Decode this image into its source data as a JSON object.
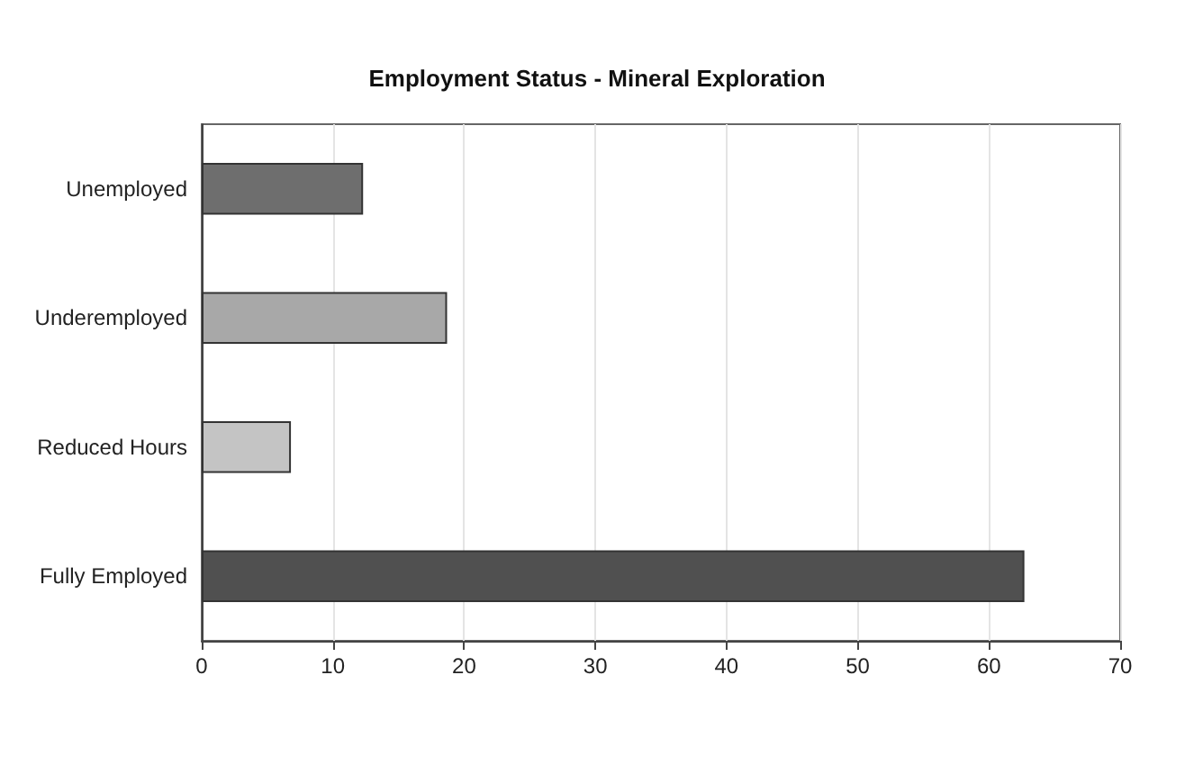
{
  "chart_data": {
    "type": "bar",
    "orientation": "horizontal",
    "title": "Employment Status - Mineral Exploration",
    "categories": [
      "Unemployed",
      "Underemployed",
      "Reduced Hours",
      "Fully Employed"
    ],
    "values": [
      12.3,
      18.7,
      6.8,
      62.7
    ],
    "colors": [
      "#6e6e6e",
      "#a8a8a8",
      "#c4c4c4",
      "#505050"
    ],
    "xlim": [
      0,
      70
    ],
    "xticks": [
      0,
      10,
      20,
      30,
      40,
      50,
      60,
      70
    ],
    "grid": "x"
  }
}
